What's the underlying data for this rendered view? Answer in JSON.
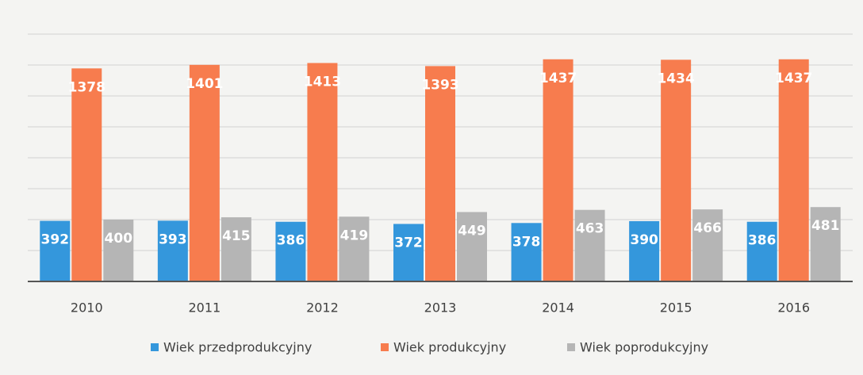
{
  "chart_data": {
    "type": "bar",
    "categories": [
      "2010",
      "2011",
      "2012",
      "2013",
      "2014",
      "2015",
      "2016"
    ],
    "series": [
      {
        "name": "Wiek przedprodukcyjny",
        "color": "#3497dc",
        "values": [
          392,
          393,
          386,
          372,
          378,
          390,
          386
        ]
      },
      {
        "name": "Wiek produkcyjny",
        "color": "#f77c4e",
        "values": [
          1378,
          1401,
          1413,
          1393,
          1437,
          1434,
          1437
        ]
      },
      {
        "name": "Wiek poprodukcyjny",
        "color": "#b5b5b5",
        "values": [
          400,
          415,
          419,
          449,
          463,
          466,
          481
        ]
      }
    ],
    "ylim": [
      0,
      1600
    ],
    "yticks": [
      0,
      200,
      400,
      600,
      800,
      1000,
      1200,
      1400,
      1600
    ],
    "grid": true,
    "legend": "bottom"
  }
}
